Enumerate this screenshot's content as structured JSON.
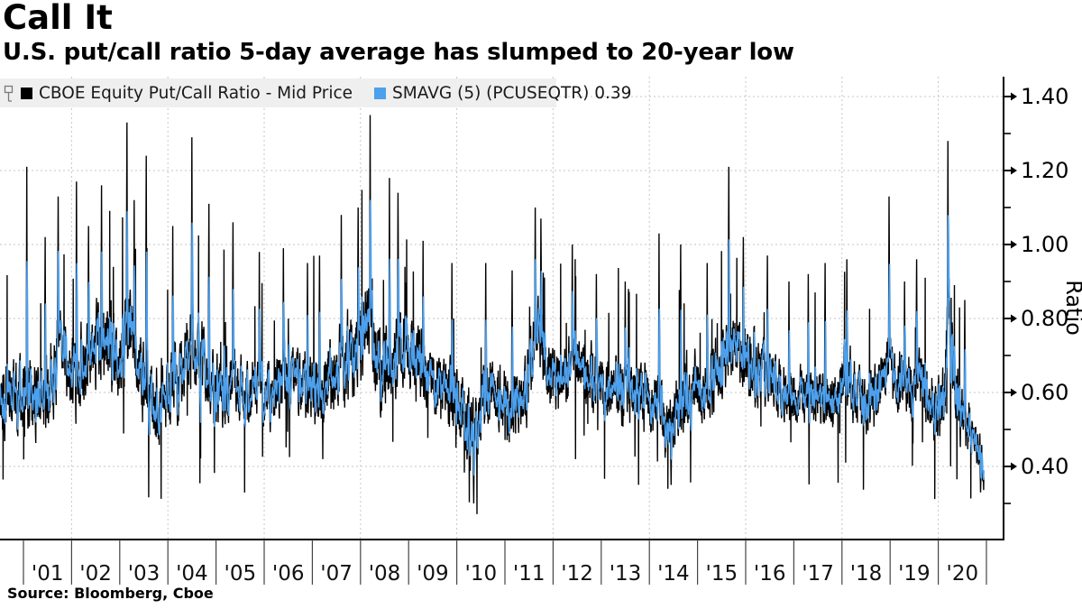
{
  "header": {
    "title": "Call It",
    "subtitle": "U.S. put/call ratio 5-day average has slumped to 20-year low"
  },
  "source": "Source: Bloomberg, Cboe",
  "legend": {
    "items": [
      {
        "label": "CBOE Equity Put/Call Ratio - Mid Price",
        "color": "#000000"
      },
      {
        "label": "SMAVG (5) (PCUSEQTR) 0.39",
        "color": "#4DA0EC"
      }
    ]
  },
  "axis": {
    "y_title": "Ratio",
    "y_major_ticks": [
      {
        "value": 1.4,
        "label": "1.40"
      },
      {
        "value": 1.2,
        "label": "1.20"
      },
      {
        "value": 1.0,
        "label": "1.00"
      },
      {
        "value": 0.8,
        "label": "0.80"
      },
      {
        "value": 0.6,
        "label": "0.60"
      },
      {
        "value": 0.4,
        "label": "0.40"
      }
    ],
    "y_minor_ticks": [
      1.3,
      1.1,
      0.9,
      0.7,
      0.5,
      0.3
    ],
    "x_year_labels": [
      "'01",
      "'02",
      "'03",
      "'04",
      "'05",
      "'06",
      "'07",
      "'08",
      "'09",
      "'10",
      "'11",
      "'12",
      "'13",
      "'14",
      "'15",
      "'16",
      "'17",
      "'18",
      "'19",
      "'20"
    ]
  },
  "chart_data": {
    "type": "line",
    "title": "Call It",
    "subtitle": "U.S. put/call ratio 5-day average has slumped to 20-year low",
    "xlabel": "",
    "ylabel": "Ratio",
    "x_range_decimal_years": [
      2000.51,
      2020.95
    ],
    "ylim": [
      0.2,
      1.45
    ],
    "y_tick_values": [
      0.4,
      0.6,
      0.8,
      1.0,
      1.2,
      1.4
    ],
    "grid": "dotted, horizontal at each 0.20 step, vertical at even-year boundaries",
    "legend_position": "top-left",
    "series": [
      {
        "name": "CBOE Equity Put/Call Ratio - Mid Price",
        "color": "#000000",
        "style": "daily values, very noisy",
        "last_value": 0.37,
        "peak_days": [
          [
            2001.07,
            1.21
          ],
          [
            2001.45,
            1.02
          ],
          [
            2001.72,
            1.13
          ],
          [
            2002.1,
            1.17
          ],
          [
            2002.35,
            1.05
          ],
          [
            2002.62,
            1.16
          ],
          [
            2003.15,
            1.33
          ],
          [
            2003.3,
            1.12
          ],
          [
            2003.55,
            1.24
          ],
          [
            2004.1,
            1.05
          ],
          [
            2004.5,
            1.29
          ],
          [
            2004.85,
            1.11
          ],
          [
            2005.35,
            1.06
          ],
          [
            2005.9,
            0.98
          ],
          [
            2006.4,
            0.99
          ],
          [
            2006.9,
            0.95
          ],
          [
            2007.15,
            0.97
          ],
          [
            2007.6,
            1.08
          ],
          [
            2007.95,
            1.1
          ],
          [
            2008.2,
            1.35
          ],
          [
            2008.6,
            1.18
          ],
          [
            2008.78,
            1.14
          ],
          [
            2009.3,
            1.01
          ],
          [
            2009.9,
            0.95
          ],
          [
            2010.35,
            0.3
          ],
          [
            2010.6,
            0.95
          ],
          [
            2011.15,
            0.93
          ],
          [
            2011.63,
            1.1
          ],
          [
            2011.75,
            1.07
          ],
          [
            2012.4,
            1.0
          ],
          [
            2012.9,
            0.92
          ],
          [
            2013.5,
            0.9
          ],
          [
            2014.2,
            1.03
          ],
          [
            2014.45,
            0.35
          ],
          [
            2014.65,
            1.0
          ],
          [
            2015.2,
            0.95
          ],
          [
            2015.65,
            1.21
          ],
          [
            2015.95,
            1.02
          ],
          [
            2016.45,
            0.97
          ],
          [
            2016.9,
            0.9
          ],
          [
            2017.3,
            0.92
          ],
          [
            2017.65,
            0.95
          ],
          [
            2018.1,
            0.96
          ],
          [
            2018.98,
            1.13
          ],
          [
            2019.3,
            0.9
          ],
          [
            2019.55,
            0.96
          ],
          [
            2020.2,
            1.28
          ],
          [
            2020.55,
            0.85
          ],
          [
            2020.88,
            0.33
          ]
        ],
        "daily_volatility_by_period": [
          [
            2000.51,
            0.095
          ],
          [
            2002.5,
            0.105
          ],
          [
            2004.5,
            0.095
          ],
          [
            2005.5,
            0.075
          ],
          [
            2007.0,
            0.08
          ],
          [
            2008.2,
            0.11
          ],
          [
            2009.5,
            0.09
          ],
          [
            2010.5,
            0.085
          ],
          [
            2012.5,
            0.075
          ],
          [
            2014.5,
            0.08
          ],
          [
            2015.8,
            0.085
          ],
          [
            2017.0,
            0.07
          ],
          [
            2018.5,
            0.08
          ],
          [
            2019.5,
            0.075
          ],
          [
            2020.25,
            0.095
          ],
          [
            2020.8,
            0.05
          ]
        ]
      },
      {
        "name": "SMAVG (5) (PCUSEQTR)",
        "color": "#4DA0EC",
        "style": "5-day simple moving average of the daily series",
        "last_value": 0.39,
        "baseline_level": [
          [
            2000.51,
            0.57
          ],
          [
            2000.7,
            0.6
          ],
          [
            2000.9,
            0.62
          ],
          [
            2001.1,
            0.6
          ],
          [
            2001.3,
            0.57
          ],
          [
            2001.5,
            0.6
          ],
          [
            2001.67,
            0.66
          ],
          [
            2001.72,
            0.78
          ],
          [
            2001.8,
            0.7
          ],
          [
            2002.0,
            0.63
          ],
          [
            2002.2,
            0.66
          ],
          [
            2002.4,
            0.7
          ],
          [
            2002.55,
            0.74
          ],
          [
            2002.75,
            0.72
          ],
          [
            2002.95,
            0.68
          ],
          [
            2003.1,
            0.72
          ],
          [
            2003.2,
            0.8
          ],
          [
            2003.3,
            0.7
          ],
          [
            2003.5,
            0.63
          ],
          [
            2003.7,
            0.6
          ],
          [
            2003.95,
            0.58
          ],
          [
            2004.15,
            0.61
          ],
          [
            2004.35,
            0.66
          ],
          [
            2004.5,
            0.74
          ],
          [
            2004.65,
            0.68
          ],
          [
            2004.9,
            0.63
          ],
          [
            2005.1,
            0.61
          ],
          [
            2005.35,
            0.63
          ],
          [
            2005.6,
            0.6
          ],
          [
            2005.85,
            0.62
          ],
          [
            2006.1,
            0.59
          ],
          [
            2006.35,
            0.64
          ],
          [
            2006.6,
            0.66
          ],
          [
            2006.85,
            0.62
          ],
          [
            2007.05,
            0.6
          ],
          [
            2007.3,
            0.62
          ],
          [
            2007.55,
            0.66
          ],
          [
            2007.8,
            0.7
          ],
          [
            2008.0,
            0.72
          ],
          [
            2008.18,
            0.82
          ],
          [
            2008.35,
            0.68
          ],
          [
            2008.6,
            0.66
          ],
          [
            2008.8,
            0.72
          ],
          [
            2009.0,
            0.7
          ],
          [
            2009.25,
            0.66
          ],
          [
            2009.5,
            0.62
          ],
          [
            2009.75,
            0.6
          ],
          [
            2010.0,
            0.58
          ],
          [
            2010.2,
            0.52
          ],
          [
            2010.35,
            0.48
          ],
          [
            2010.55,
            0.58
          ],
          [
            2010.8,
            0.6
          ],
          [
            2011.0,
            0.56
          ],
          [
            2011.2,
            0.57
          ],
          [
            2011.45,
            0.6
          ],
          [
            2011.6,
            0.72
          ],
          [
            2011.65,
            0.8
          ],
          [
            2011.8,
            0.7
          ],
          [
            2012.0,
            0.66
          ],
          [
            2012.25,
            0.63
          ],
          [
            2012.4,
            0.7
          ],
          [
            2012.6,
            0.66
          ],
          [
            2012.85,
            0.64
          ],
          [
            2013.1,
            0.62
          ],
          [
            2013.4,
            0.6
          ],
          [
            2013.7,
            0.61
          ],
          [
            2013.95,
            0.58
          ],
          [
            2014.15,
            0.56
          ],
          [
            2014.35,
            0.5
          ],
          [
            2014.5,
            0.52
          ],
          [
            2014.7,
            0.6
          ],
          [
            2014.9,
            0.62
          ],
          [
            2015.1,
            0.61
          ],
          [
            2015.35,
            0.63
          ],
          [
            2015.6,
            0.7
          ],
          [
            2015.67,
            0.76
          ],
          [
            2015.85,
            0.7
          ],
          [
            2016.05,
            0.7
          ],
          [
            2016.3,
            0.64
          ],
          [
            2016.55,
            0.62
          ],
          [
            2016.8,
            0.59
          ],
          [
            2017.05,
            0.58
          ],
          [
            2017.3,
            0.61
          ],
          [
            2017.55,
            0.58
          ],
          [
            2017.8,
            0.57
          ],
          [
            2018.05,
            0.64
          ],
          [
            2018.3,
            0.6
          ],
          [
            2018.55,
            0.58
          ],
          [
            2018.8,
            0.6
          ],
          [
            2018.97,
            0.7
          ],
          [
            2019.1,
            0.64
          ],
          [
            2019.35,
            0.61
          ],
          [
            2019.6,
            0.63
          ],
          [
            2019.8,
            0.58
          ],
          [
            2020.0,
            0.56
          ],
          [
            2020.13,
            0.6
          ],
          [
            2020.22,
            0.86
          ],
          [
            2020.3,
            0.68
          ],
          [
            2020.45,
            0.56
          ],
          [
            2020.6,
            0.52
          ],
          [
            2020.75,
            0.47
          ],
          [
            2020.88,
            0.42
          ],
          [
            2020.95,
            0.39
          ]
        ]
      }
    ]
  },
  "render_hints": {
    "noise_seed": 20201218,
    "trading_days_per_year": 252,
    "grid_color": "#c6c6c6",
    "axis_color": "#000000",
    "divider_color": "#444444"
  }
}
